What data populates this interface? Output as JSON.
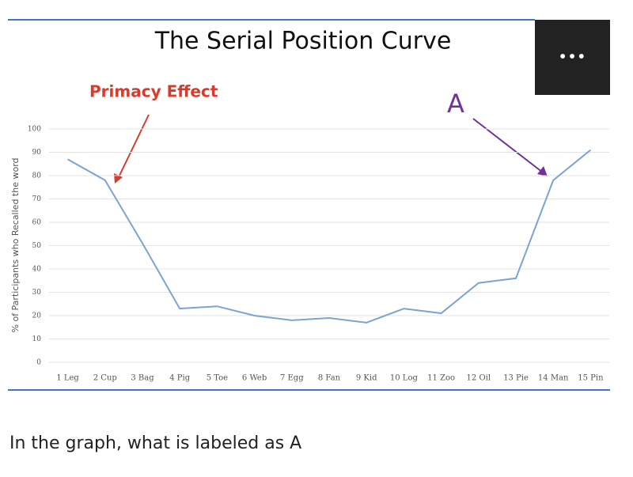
{
  "chart_data": {
    "type": "line",
    "title": "The Serial Position Curve",
    "y_label": "% of Participants who Recalled the word",
    "categories": [
      "1 Leg",
      "2 Cup",
      "3 Bag",
      "4 Pig",
      "5 Toe",
      "6 Web",
      "7 Egg",
      "8 Fan",
      "9 Kid",
      "10 Log",
      "11 Zoo",
      "12 Oil",
      "13 Pie",
      "14 Man",
      "15 Pin"
    ],
    "values": [
      87,
      78,
      51,
      23,
      24,
      20,
      18,
      19,
      17,
      23,
      21,
      34,
      36,
      78,
      91
    ],
    "color": "#7ba3d3",
    "ylim": [
      0,
      100
    ],
    "yticks": [
      0,
      10,
      20,
      30,
      40,
      50,
      60,
      70,
      80,
      90,
      100
    ],
    "grid": true,
    "annotations": [
      {
        "text": "Primacy Effect"
      },
      {
        "text": "A"
      }
    ]
  },
  "menu_button": "•••",
  "question": "In the graph, what is labeled as A"
}
